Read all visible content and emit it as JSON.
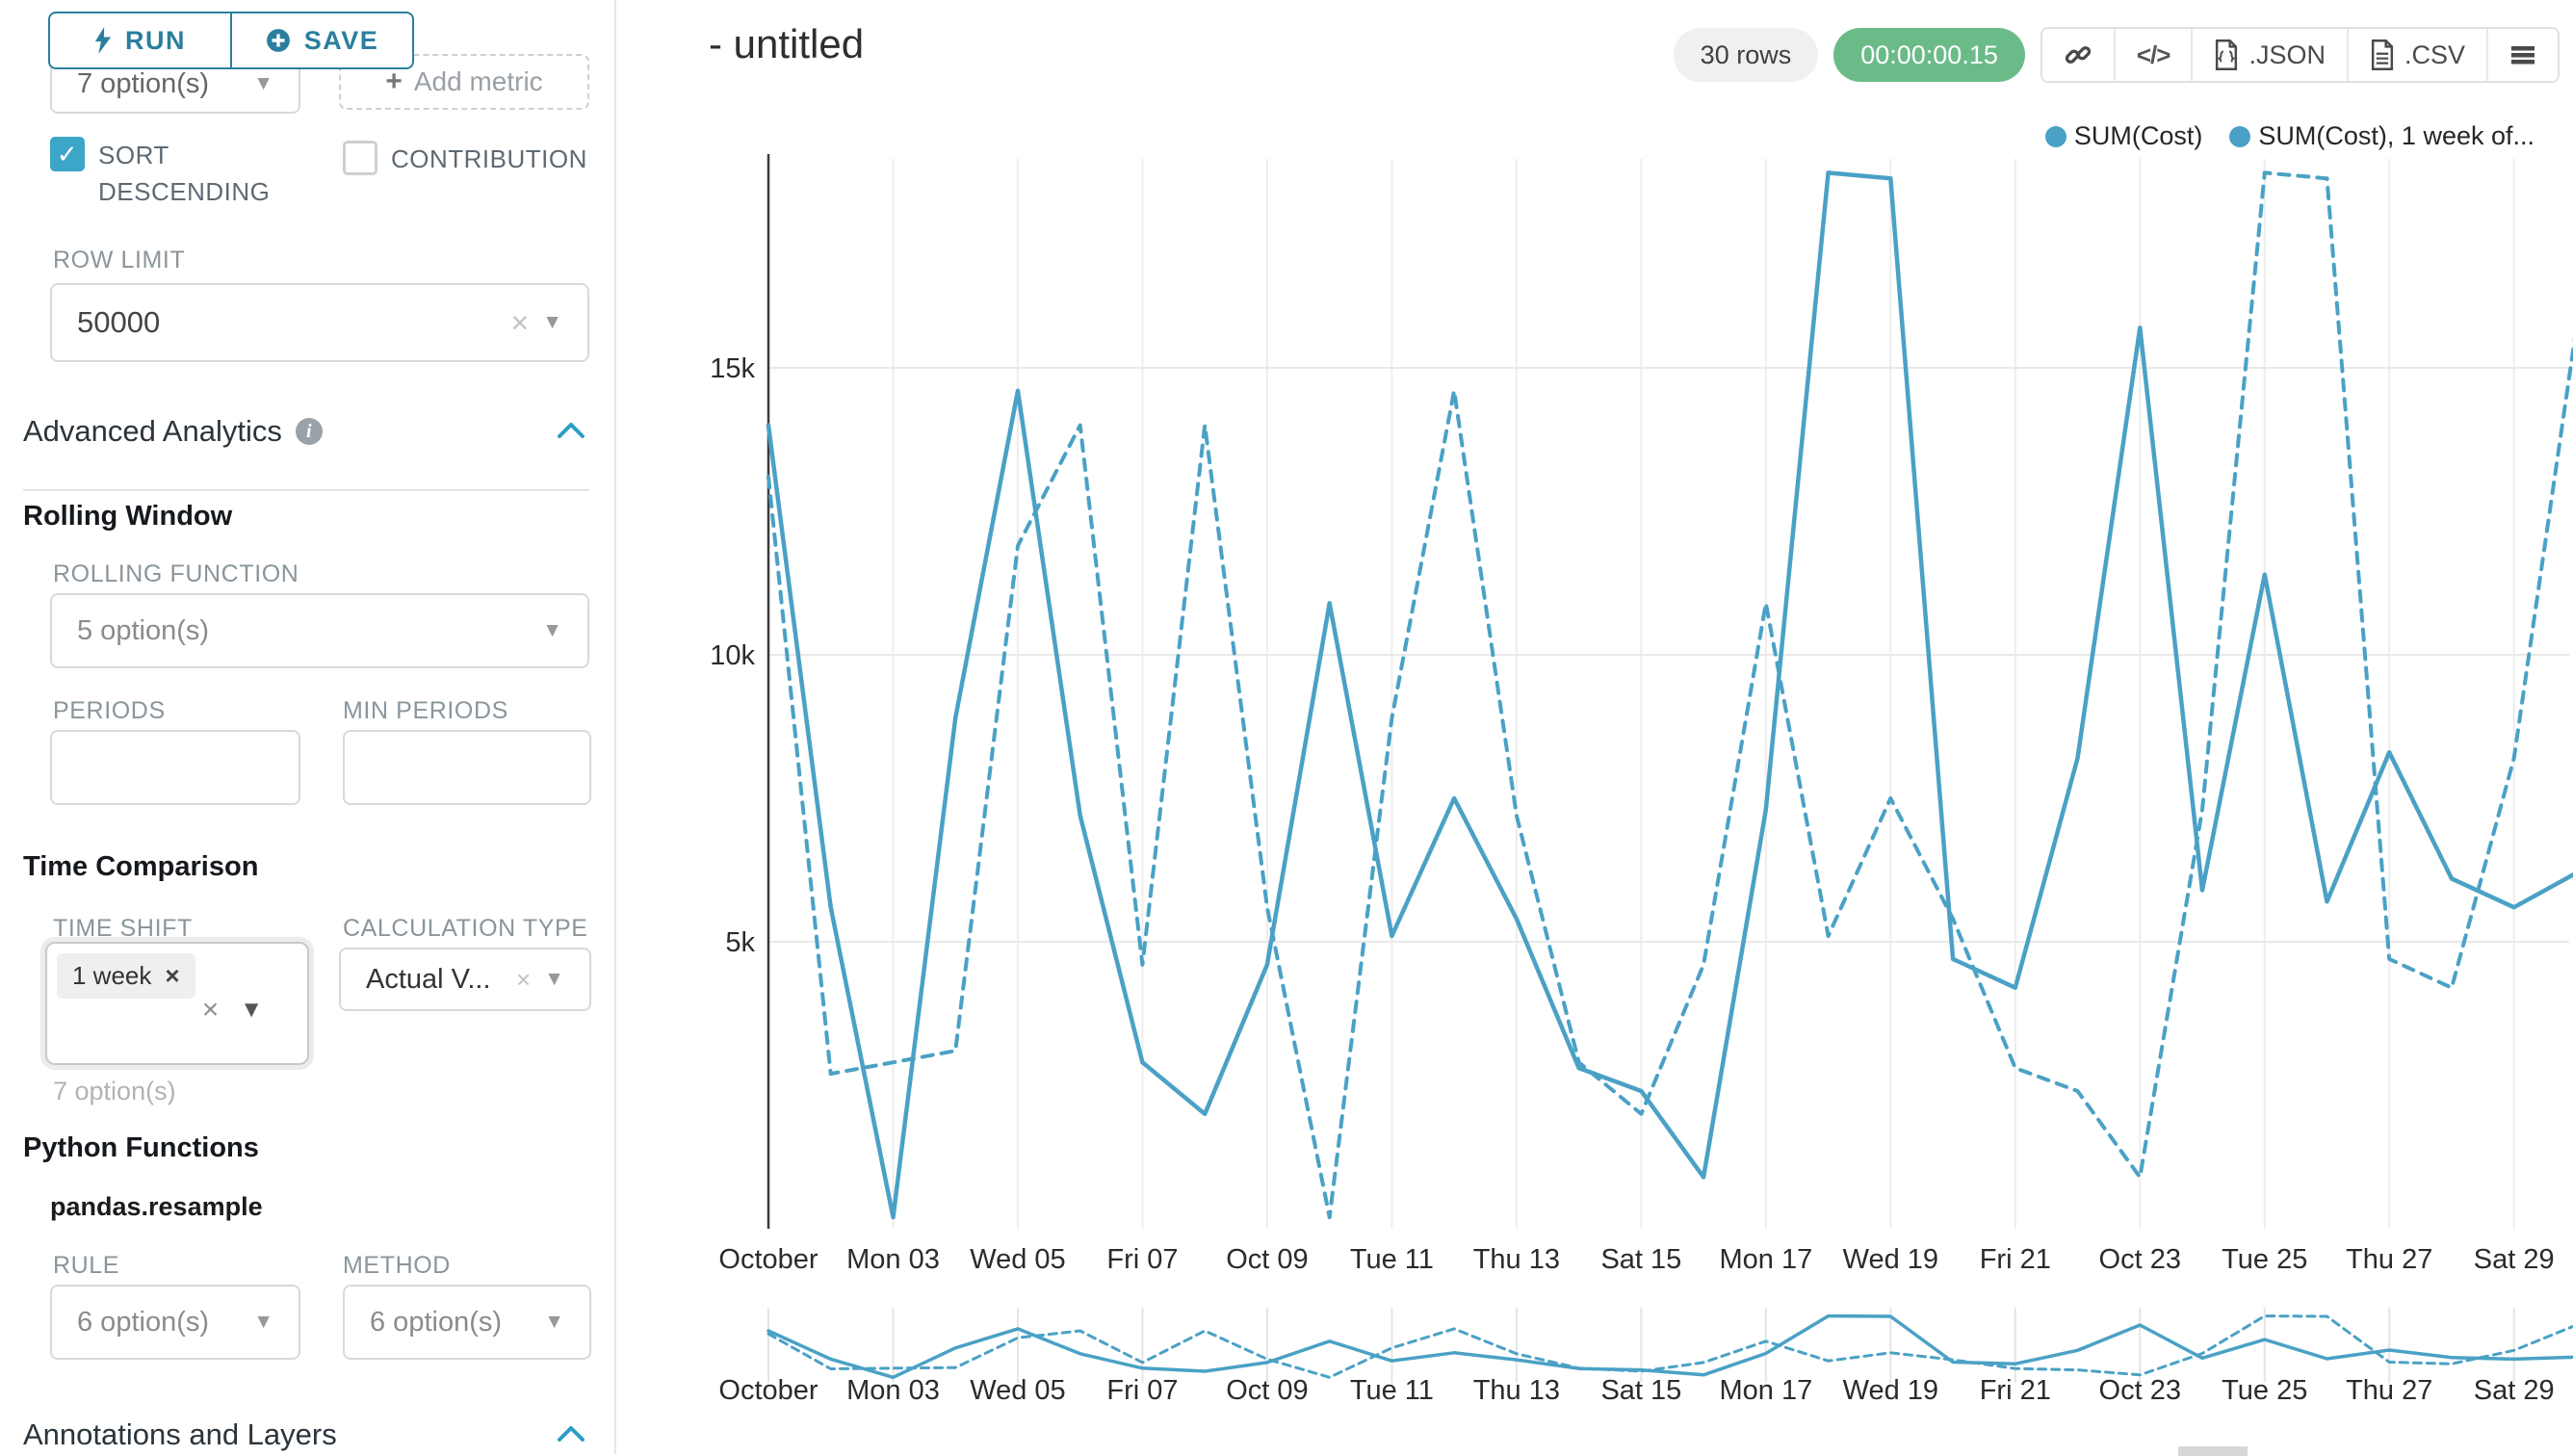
{
  "sidebar": {
    "run_label": "RUN",
    "save_label": "SAVE",
    "groupby_value": "7 option(s)",
    "add_metric_label": "Add metric",
    "sort_descending_label": "SORT DESCENDING",
    "contribution_label": "CONTRIBUTION",
    "row_limit_label": "ROW LIMIT",
    "row_limit_value": "50000",
    "advanced_analytics_title": "Advanced Analytics",
    "rolling_window_title": "Rolling Window",
    "rolling_function_label": "ROLLING FUNCTION",
    "rolling_function_value": "5 option(s)",
    "periods_label": "PERIODS",
    "min_periods_label": "MIN PERIODS",
    "time_comparison_title": "Time Comparison",
    "time_shift_label": "TIME SHIFT",
    "time_shift_chip": "1 week",
    "time_shift_helper": "7 option(s)",
    "calculation_type_label": "CALCULATION TYPE",
    "calculation_type_value": "Actual V...",
    "python_functions_title": "Python Functions",
    "pandas_resample_label": "pandas.resample",
    "rule_label": "RULE",
    "rule_value": "6 option(s)",
    "method_label": "METHOD",
    "method_value": "6 option(s)",
    "annotations_title": "Annotations and Layers"
  },
  "header": {
    "title": "- untitled",
    "rows_badge": "30 rows",
    "timer_badge": "00:00:00.15",
    "export_json_label": ".JSON",
    "export_csv_label": ".CSV"
  },
  "colors": {
    "series_line": "#4aa1c5",
    "primary_teal": "#2b7f9e",
    "checkbox_teal": "#3ca6c8",
    "timer_green": "#6abb88"
  },
  "chart_data": {
    "type": "line",
    "title": "- untitled",
    "x_granularity": "daily",
    "x_tick_labels": [
      "October",
      "Mon 03",
      "Wed 05",
      "Fri 07",
      "Oct 09",
      "Tue 11",
      "Thu 13",
      "Sat 15",
      "Mon 17",
      "Wed 19",
      "Fri 21",
      "Oct 23",
      "Tue 25",
      "Thu 27",
      "Sat 29"
    ],
    "y_ticks": [
      {
        "value": 5000,
        "label": "5k"
      },
      {
        "value": 10000,
        "label": "10k"
      },
      {
        "value": 15000,
        "label": "15k"
      }
    ],
    "ylim": [
      0,
      18500
    ],
    "grid": true,
    "legend_position": "top-right",
    "series": [
      {
        "name": "SUM(Cost)",
        "style": "solid",
        "values": [
          14000,
          5600,
          200,
          8900,
          14600,
          7200,
          2900,
          2000,
          4600,
          10900,
          5100,
          7500,
          5400,
          2800,
          2400,
          900,
          7300,
          18400,
          18300,
          4700,
          4200,
          8200,
          15700,
          5900,
          11400,
          5700,
          8300,
          6100,
          5600,
          6200
        ]
      },
      {
        "name": "SUM(Cost), 1 week of...",
        "style": "dashed",
        "values": [
          13100,
          2700,
          2900,
          3100,
          11900,
          14000,
          4600,
          14000,
          5600,
          200,
          8900,
          14600,
          7200,
          2900,
          2000,
          4600,
          10900,
          5100,
          7500,
          5400,
          2800,
          2400,
          900,
          7300,
          18400,
          18300,
          4700,
          4200,
          8200,
          15700
        ]
      }
    ],
    "has_mini_overview_chart": true
  }
}
